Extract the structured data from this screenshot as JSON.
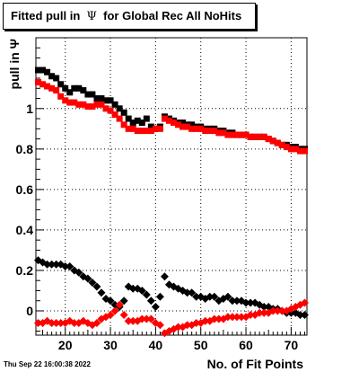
{
  "title": {
    "prefix": "Fitted pull in",
    "symbol": "Ψ",
    "suffix": "for Global Rec All NoHits"
  },
  "timestamp": "Thu Sep 22 16:00:38 2022",
  "chart_data": {
    "type": "scatter",
    "xlabel": "No. of Fit Points",
    "ylabel": "pull in Ψ",
    "xlim": [
      13.5,
      73.5
    ],
    "ylim": [
      -0.12,
      1.35
    ],
    "x_ticks": [
      20,
      30,
      40,
      50,
      60,
      70
    ],
    "y_ticks": [
      0,
      0.2,
      0.4,
      0.6,
      0.8,
      1
    ],
    "x_tick_labels": [
      "20",
      "30",
      "40",
      "50",
      "60",
      "70"
    ],
    "y_tick_labels": [
      "0",
      "0.2",
      "0.4",
      "0.6",
      "0.8",
      "1"
    ],
    "grid": true,
    "series": [
      {
        "marker": "square",
        "color": "#000000",
        "x": [
          14,
          15,
          16,
          17,
          18,
          19,
          20,
          21,
          22,
          23,
          24,
          25,
          26,
          27,
          28,
          29,
          30,
          31,
          32,
          33,
          34,
          35,
          36,
          37,
          38,
          39,
          40,
          41,
          42,
          43,
          44,
          45,
          46,
          47,
          48,
          49,
          50,
          51,
          52,
          53,
          54,
          55,
          56,
          57,
          58,
          59,
          60,
          61,
          62,
          63,
          64,
          65,
          66,
          67,
          68,
          69,
          70,
          71,
          72,
          73
        ],
        "y": [
          1.19,
          1.19,
          1.18,
          1.16,
          1.15,
          1.12,
          1.1,
          1.08,
          1.1,
          1.1,
          1.09,
          1.07,
          1.07,
          1.05,
          1.05,
          1.04,
          1.04,
          1.02,
          1.0,
          0.98,
          0.95,
          0.93,
          0.94,
          0.93,
          0.95,
          0.91,
          0.9,
          0.91,
          0.96,
          0.95,
          0.94,
          0.93,
          0.93,
          0.92,
          0.92,
          0.91,
          0.91,
          0.9,
          0.9,
          0.9,
          0.89,
          0.89,
          0.88,
          0.88,
          0.87,
          0.87,
          0.87,
          0.86,
          0.86,
          0.86,
          0.86,
          0.85,
          0.84,
          0.83,
          0.82,
          0.82,
          0.81,
          0.81,
          0.8,
          0.8
        ]
      },
      {
        "marker": "square",
        "color": "#ff0000",
        "x": [
          14,
          15,
          16,
          17,
          18,
          19,
          20,
          21,
          22,
          23,
          24,
          25,
          26,
          27,
          28,
          29,
          30,
          31,
          32,
          33,
          34,
          35,
          36,
          37,
          38,
          39,
          40,
          41,
          42,
          43,
          44,
          45,
          46,
          47,
          48,
          49,
          50,
          51,
          52,
          53,
          54,
          55,
          56,
          57,
          58,
          59,
          60,
          61,
          62,
          63,
          64,
          65,
          66,
          67,
          68,
          69,
          70,
          71,
          72,
          73
        ],
        "y": [
          1.13,
          1.12,
          1.11,
          1.1,
          1.09,
          1.06,
          1.04,
          1.03,
          1.03,
          1.02,
          1.02,
          1.01,
          1.01,
          1.02,
          1.02,
          1.0,
          0.99,
          0.97,
          0.95,
          0.92,
          0.9,
          0.9,
          0.89,
          0.89,
          0.89,
          0.89,
          0.9,
          0.9,
          0.95,
          0.94,
          0.93,
          0.92,
          0.91,
          0.91,
          0.9,
          0.9,
          0.9,
          0.89,
          0.89,
          0.89,
          0.88,
          0.88,
          0.87,
          0.87,
          0.87,
          0.87,
          0.87,
          0.86,
          0.86,
          0.86,
          0.86,
          0.85,
          0.84,
          0.83,
          0.82,
          0.81,
          0.8,
          0.8,
          0.79,
          0.79
        ]
      },
      {
        "marker": "diamond",
        "color": "#000000",
        "x": [
          14,
          15,
          16,
          17,
          18,
          19,
          20,
          21,
          22,
          23,
          24,
          25,
          26,
          27,
          28,
          29,
          30,
          31,
          32,
          33,
          34,
          35,
          36,
          37,
          38,
          39,
          40,
          41,
          42,
          43,
          44,
          45,
          46,
          47,
          48,
          49,
          50,
          51,
          52,
          53,
          54,
          55,
          56,
          57,
          58,
          59,
          60,
          61,
          62,
          63,
          64,
          65,
          66,
          67,
          68,
          69,
          70,
          71,
          72,
          73
        ],
        "y": [
          0.25,
          0.24,
          0.23,
          0.23,
          0.23,
          0.23,
          0.22,
          0.22,
          0.2,
          0.19,
          0.17,
          0.16,
          0.14,
          0.12,
          0.09,
          0.06,
          0.05,
          0.03,
          0.02,
          0.05,
          0.12,
          0.11,
          0.11,
          0.1,
          0.08,
          0.05,
          0.02,
          0.07,
          0.17,
          0.13,
          0.12,
          0.11,
          0.1,
          0.09,
          0.09,
          0.07,
          0.07,
          0.06,
          0.07,
          0.07,
          0.05,
          0.06,
          0.07,
          0.05,
          0.05,
          0.05,
          0.04,
          0.04,
          0.04,
          0.03,
          0.02,
          0.02,
          0.01,
          0.01,
          0.0,
          -0.01,
          -0.01,
          -0.01,
          -0.02,
          -0.02
        ]
      },
      {
        "marker": "diamond",
        "color": "#ff0000",
        "x": [
          14,
          15,
          16,
          17,
          18,
          19,
          20,
          21,
          22,
          23,
          24,
          25,
          26,
          27,
          28,
          29,
          30,
          31,
          32,
          33,
          34,
          35,
          36,
          37,
          38,
          39,
          40,
          41,
          42,
          43,
          44,
          45,
          46,
          47,
          48,
          49,
          50,
          51,
          52,
          53,
          54,
          55,
          56,
          57,
          58,
          59,
          60,
          61,
          62,
          63,
          64,
          65,
          66,
          67,
          68,
          69,
          70,
          71,
          72,
          73
        ],
        "y": [
          -0.06,
          -0.06,
          -0.05,
          -0.06,
          -0.06,
          -0.06,
          -0.06,
          -0.05,
          -0.06,
          -0.06,
          -0.05,
          -0.06,
          -0.07,
          -0.06,
          -0.04,
          -0.03,
          -0.02,
          0.0,
          0.03,
          -0.02,
          -0.05,
          -0.05,
          -0.05,
          -0.04,
          -0.04,
          -0.04,
          -0.06,
          -0.07,
          -0.11,
          -0.1,
          -0.09,
          -0.08,
          -0.08,
          -0.07,
          -0.07,
          -0.06,
          -0.06,
          -0.05,
          -0.05,
          -0.04,
          -0.04,
          -0.04,
          -0.03,
          -0.03,
          -0.03,
          -0.03,
          -0.03,
          -0.02,
          -0.02,
          -0.01,
          -0.01,
          -0.01,
          0.0,
          0.0,
          0.0,
          0.0,
          0.01,
          0.02,
          0.03,
          0.04
        ]
      }
    ]
  }
}
